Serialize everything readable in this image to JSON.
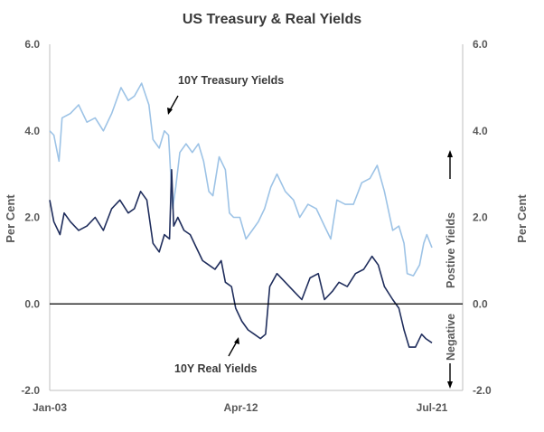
{
  "chart_data": {
    "type": "line",
    "title": "US Treasury & Real Yields",
    "ylabel_left": "Per Cent",
    "ylabel_right": "Per Cent",
    "ylim": [
      -2.0,
      6.0
    ],
    "yticks": [
      "-2.0",
      "0.0",
      "2.0",
      "4.0",
      "6.0"
    ],
    "xlim": [
      2003.0,
      2021.5
    ],
    "xticks": [
      {
        "label": "Jan-03",
        "x": 2003.0
      },
      {
        "label": "Apr-12",
        "x": 2012.25
      },
      {
        "label": "Jul-21",
        "x": 2021.5
      }
    ],
    "zero_line": 0.0,
    "series": [
      {
        "name": "10Y Treasury Yields",
        "color": "#9dc3e6",
        "x": [
          2003.0,
          2003.2,
          2003.45,
          2003.6,
          2004.0,
          2004.4,
          2004.8,
          2005.2,
          2005.6,
          2006.0,
          2006.45,
          2006.8,
          2007.1,
          2007.45,
          2007.8,
          2008.0,
          2008.3,
          2008.55,
          2008.75,
          2008.95,
          2009.1,
          2009.3,
          2009.6,
          2009.9,
          2010.2,
          2010.45,
          2010.7,
          2010.9,
          2011.2,
          2011.5,
          2011.7,
          2011.9,
          2012.2,
          2012.5,
          2012.8,
          2013.1,
          2013.4,
          2013.7,
          2014.0,
          2014.4,
          2014.8,
          2015.1,
          2015.5,
          2015.9,
          2016.3,
          2016.6,
          2016.9,
          2017.3,
          2017.7,
          2018.1,
          2018.5,
          2018.85,
          2019.2,
          2019.6,
          2019.9,
          2020.15,
          2020.3,
          2020.6,
          2020.9,
          2021.1,
          2021.25,
          2021.5
        ],
        "y": [
          4.0,
          3.9,
          3.3,
          4.3,
          4.4,
          4.6,
          4.2,
          4.3,
          4.0,
          4.4,
          5.0,
          4.7,
          4.8,
          5.1,
          4.6,
          3.8,
          3.6,
          4.0,
          3.9,
          2.2,
          2.7,
          3.5,
          3.7,
          3.5,
          3.7,
          3.3,
          2.6,
          2.5,
          3.4,
          3.1,
          2.1,
          2.0,
          2.0,
          1.5,
          1.7,
          1.9,
          2.2,
          2.7,
          3.0,
          2.6,
          2.4,
          2.0,
          2.3,
          2.2,
          1.8,
          1.5,
          2.4,
          2.3,
          2.3,
          2.8,
          2.9,
          3.2,
          2.6,
          1.7,
          1.8,
          1.4,
          0.7,
          0.65,
          0.9,
          1.4,
          1.6,
          1.3
        ]
      },
      {
        "name": "10Y Real Yields",
        "color": "#1f2d5c",
        "x": [
          2003.0,
          2003.2,
          2003.5,
          2003.7,
          2004.0,
          2004.4,
          2004.8,
          2005.2,
          2005.6,
          2006.0,
          2006.4,
          2006.8,
          2007.1,
          2007.4,
          2007.7,
          2008.0,
          2008.3,
          2008.55,
          2008.8,
          2008.9,
          2009.0,
          2009.2,
          2009.5,
          2009.8,
          2010.1,
          2010.4,
          2010.7,
          2011.0,
          2011.3,
          2011.5,
          2011.8,
          2012.0,
          2012.3,
          2012.6,
          2012.9,
          2013.2,
          2013.45,
          2013.65,
          2014.0,
          2014.4,
          2014.8,
          2015.2,
          2015.6,
          2016.0,
          2016.3,
          2016.7,
          2017.0,
          2017.4,
          2017.8,
          2018.2,
          2018.6,
          2018.9,
          2019.2,
          2019.6,
          2019.9,
          2020.15,
          2020.4,
          2020.7,
          2021.0,
          2021.2,
          2021.5
        ],
        "y": [
          2.4,
          1.9,
          1.6,
          2.1,
          1.9,
          1.7,
          1.8,
          2.0,
          1.7,
          2.2,
          2.4,
          2.1,
          2.2,
          2.6,
          2.4,
          1.4,
          1.2,
          1.6,
          1.5,
          3.1,
          1.8,
          2.0,
          1.7,
          1.6,
          1.3,
          1.0,
          0.9,
          0.8,
          1.0,
          0.5,
          0.4,
          -0.1,
          -0.4,
          -0.6,
          -0.7,
          -0.8,
          -0.7,
          0.4,
          0.7,
          0.5,
          0.3,
          0.1,
          0.6,
          0.7,
          0.1,
          0.3,
          0.5,
          0.4,
          0.7,
          0.8,
          1.1,
          0.9,
          0.4,
          0.1,
          -0.1,
          -0.6,
          -1.0,
          -1.0,
          -0.7,
          -0.8,
          -0.9
        ]
      }
    ],
    "annotations": {
      "treasury_label": "10Y Treasury Yields",
      "real_label": "10Y Real Yields",
      "positive_label": "Postive Yields",
      "negative_label": "Negative"
    }
  }
}
